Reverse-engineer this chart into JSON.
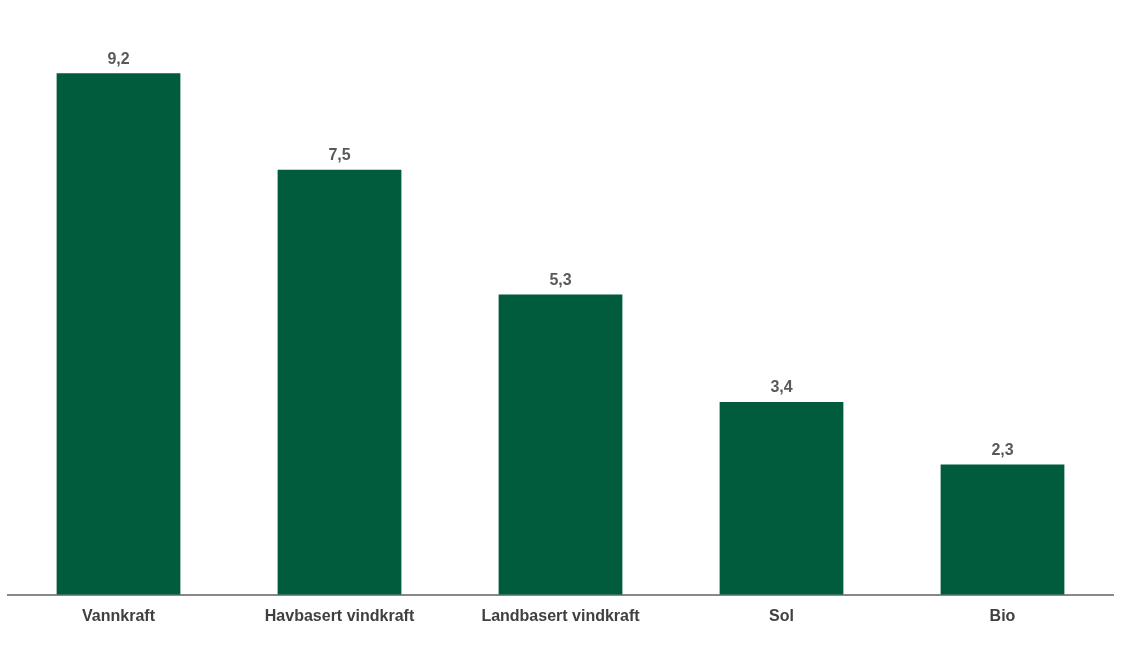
{
  "chart_data": {
    "type": "bar",
    "categories": [
      "Vannkraft",
      "Havbasert vindkraft",
      "Landbasert vindkraft",
      "Sol",
      "Bio"
    ],
    "values": [
      9.2,
      7.5,
      5.3,
      3.4,
      2.3
    ],
    "value_labels": [
      "9,2",
      "7,5",
      "5,3",
      "3,4",
      "2,3"
    ],
    "color": "#005c3c"
  }
}
